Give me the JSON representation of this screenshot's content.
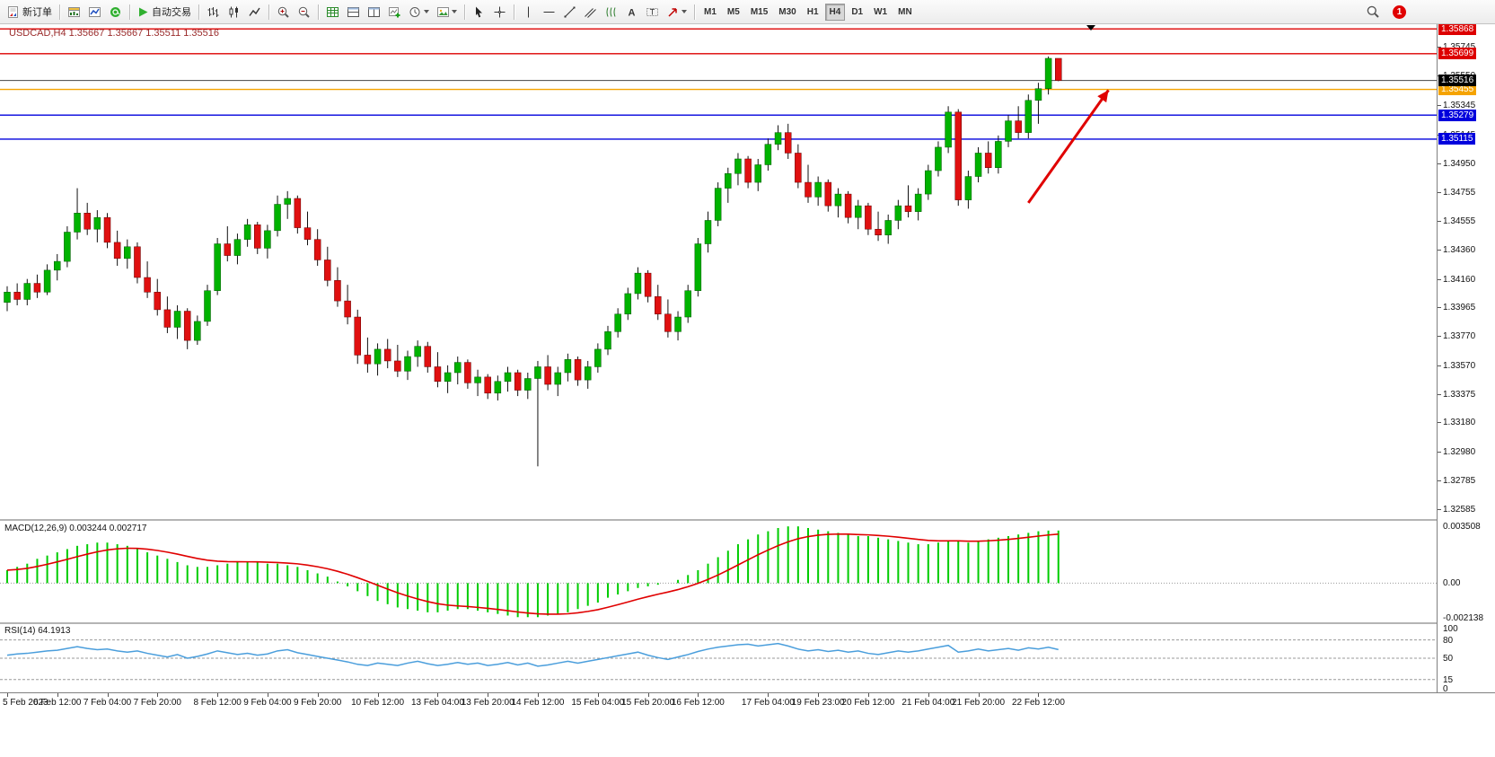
{
  "toolbar": {
    "new_order_label": "新订单",
    "autotrade_label": "自动交易",
    "timeframes": [
      {
        "label": "M1",
        "active": false
      },
      {
        "label": "M5",
        "active": false
      },
      {
        "label": "M15",
        "active": false
      },
      {
        "label": "M30",
        "active": false
      },
      {
        "label": "H1",
        "active": false
      },
      {
        "label": "H4",
        "active": true
      },
      {
        "label": "D1",
        "active": false
      },
      {
        "label": "W1",
        "active": false
      },
      {
        "label": "MN",
        "active": false
      }
    ],
    "notification_count": "1"
  },
  "chart": {
    "symbol": "USDCAD",
    "period": "H4",
    "title": "USDCAD,H4 1.35667 1.35667 1.35511 1.35516"
  },
  "chart_data": {
    "type": "candlestick",
    "symbol": "USDCAD",
    "timeframe": "H4",
    "price_range": [
      1.3252,
      1.359
    ],
    "current_price": "1.35516",
    "colors": {
      "up": "#00b300",
      "down": "#e01010",
      "wick": "#111111",
      "background": "#ffffff"
    },
    "price_axis_ticks": [
      "1.35745",
      "1.35550",
      "1.35345",
      "1.35145",
      "1.34950",
      "1.34755",
      "1.34555",
      "1.34360",
      "1.34160",
      "1.33965",
      "1.33770",
      "1.33570",
      "1.33375",
      "1.33180",
      "1.32980",
      "1.32785",
      "1.32585"
    ],
    "levels": [
      {
        "price": 1.35868,
        "label": "1.35868",
        "color": "#dd0000"
      },
      {
        "price": 1.35699,
        "label": "1.35699",
        "color": "#dd0000"
      },
      {
        "price": 1.35455,
        "label": "1.35455",
        "color": "#f5a300"
      },
      {
        "price": 1.35279,
        "label": "1.35279",
        "color": "#0000dd"
      },
      {
        "price": 1.35115,
        "label": "1.35115",
        "color": "#0000dd"
      }
    ],
    "arrow": {
      "from_bar": 102,
      "from_price": 1.3468,
      "to_bar": 110,
      "to_price": 1.3545,
      "color": "#e00000"
    },
    "time_labels": [
      {
        "index": 0,
        "label": "5 Feb 2023"
      },
      {
        "index": 5,
        "label": "6 Feb 12:00"
      },
      {
        "index": 10,
        "label": "7 Feb 04:00"
      },
      {
        "index": 15,
        "label": "7 Feb 20:00"
      },
      {
        "index": 21,
        "label": "8 Feb 12:00"
      },
      {
        "index": 26,
        "label": "9 Feb 04:00"
      },
      {
        "index": 31,
        "label": "9 Feb 20:00"
      },
      {
        "index": 37,
        "label": "10 Feb 12:00"
      },
      {
        "index": 43,
        "label": "13 Feb 04:00"
      },
      {
        "index": 48,
        "label": "13 Feb 20:00"
      },
      {
        "index": 53,
        "label": "14 Feb 12:00"
      },
      {
        "index": 59,
        "label": "15 Feb 04:00"
      },
      {
        "index": 64,
        "label": "15 Feb 20:00"
      },
      {
        "index": 69,
        "label": "16 Feb 12:00"
      },
      {
        "index": 76,
        "label": "17 Feb 04:00"
      },
      {
        "index": 81,
        "label": "19 Feb 23:00"
      },
      {
        "index": 86,
        "label": "20 Feb 12:00"
      },
      {
        "index": 92,
        "label": "21 Feb 04:00"
      },
      {
        "index": 97,
        "label": "21 Feb 20:00"
      },
      {
        "index": 103,
        "label": "22 Feb 12:00"
      }
    ],
    "ohlc": [
      [
        1.34,
        1.3411,
        1.3394,
        1.3407
      ],
      [
        1.3407,
        1.3413,
        1.3398,
        1.3402
      ],
      [
        1.3402,
        1.3416,
        1.3398,
        1.3413
      ],
      [
        1.3413,
        1.3419,
        1.3403,
        1.3407
      ],
      [
        1.3407,
        1.3426,
        1.3405,
        1.3422
      ],
      [
        1.3422,
        1.3433,
        1.3415,
        1.3428
      ],
      [
        1.3428,
        1.3452,
        1.3424,
        1.3448
      ],
      [
        1.3448,
        1.3478,
        1.3443,
        1.3461
      ],
      [
        1.3461,
        1.3468,
        1.3446,
        1.345
      ],
      [
        1.345,
        1.3463,
        1.3441,
        1.3458
      ],
      [
        1.3458,
        1.3461,
        1.3437,
        1.3441
      ],
      [
        1.3441,
        1.3449,
        1.3425,
        1.343
      ],
      [
        1.343,
        1.3443,
        1.3423,
        1.3438
      ],
      [
        1.3438,
        1.3441,
        1.3413,
        1.3417
      ],
      [
        1.3417,
        1.3428,
        1.3403,
        1.3407
      ],
      [
        1.3407,
        1.3416,
        1.3391,
        1.3395
      ],
      [
        1.3395,
        1.3404,
        1.3379,
        1.3383
      ],
      [
        1.3383,
        1.3398,
        1.3375,
        1.3394
      ],
      [
        1.3394,
        1.3396,
        1.3368,
        1.3374
      ],
      [
        1.3374,
        1.3391,
        1.3371,
        1.3387
      ],
      [
        1.3387,
        1.3412,
        1.3384,
        1.3408
      ],
      [
        1.3408,
        1.3444,
        1.3405,
        1.344
      ],
      [
        1.344,
        1.3452,
        1.3428,
        1.3432
      ],
      [
        1.3432,
        1.3447,
        1.3426,
        1.3443
      ],
      [
        1.3443,
        1.3457,
        1.3438,
        1.3453
      ],
      [
        1.3453,
        1.3455,
        1.3433,
        1.3437
      ],
      [
        1.3437,
        1.3453,
        1.343,
        1.3449
      ],
      [
        1.3449,
        1.3473,
        1.3445,
        1.3467
      ],
      [
        1.3467,
        1.3476,
        1.3457,
        1.3471
      ],
      [
        1.3471,
        1.3473,
        1.3447,
        1.3451
      ],
      [
        1.3451,
        1.3462,
        1.3439,
        1.3443
      ],
      [
        1.3443,
        1.345,
        1.3425,
        1.3429
      ],
      [
        1.3429,
        1.3438,
        1.3411,
        1.3415
      ],
      [
        1.3415,
        1.3424,
        1.3397,
        1.3401
      ],
      [
        1.3401,
        1.3412,
        1.3385,
        1.339
      ],
      [
        1.339,
        1.3395,
        1.3358,
        1.3364
      ],
      [
        1.3364,
        1.3376,
        1.3352,
        1.3358
      ],
      [
        1.3358,
        1.3372,
        1.335,
        1.3368
      ],
      [
        1.3368,
        1.3375,
        1.3355,
        1.336
      ],
      [
        1.336,
        1.3371,
        1.3349,
        1.3353
      ],
      [
        1.3353,
        1.3367,
        1.3347,
        1.3363
      ],
      [
        1.3363,
        1.3374,
        1.3356,
        1.337
      ],
      [
        1.337,
        1.3373,
        1.3352,
        1.3356
      ],
      [
        1.3356,
        1.3366,
        1.3342,
        1.3346
      ],
      [
        1.3346,
        1.3357,
        1.3338,
        1.3352
      ],
      [
        1.3352,
        1.3363,
        1.3344,
        1.3359
      ],
      [
        1.3359,
        1.3361,
        1.3341,
        1.3345
      ],
      [
        1.3345,
        1.3354,
        1.3336,
        1.3349
      ],
      [
        1.3349,
        1.3351,
        1.3334,
        1.3338
      ],
      [
        1.3338,
        1.335,
        1.3333,
        1.3346
      ],
      [
        1.3346,
        1.3356,
        1.3339,
        1.3352
      ],
      [
        1.3352,
        1.3354,
        1.3336,
        1.334
      ],
      [
        1.334,
        1.3352,
        1.3334,
        1.3348
      ],
      [
        1.3348,
        1.336,
        1.3288,
        1.3356
      ],
      [
        1.3356,
        1.3364,
        1.334,
        1.3344
      ],
      [
        1.3344,
        1.3356,
        1.3336,
        1.3352
      ],
      [
        1.3352,
        1.3365,
        1.3346,
        1.3361
      ],
      [
        1.3361,
        1.3363,
        1.3343,
        1.3347
      ],
      [
        1.3347,
        1.336,
        1.3341,
        1.3356
      ],
      [
        1.3356,
        1.3372,
        1.3352,
        1.3368
      ],
      [
        1.3368,
        1.3384,
        1.3364,
        1.338
      ],
      [
        1.338,
        1.3396,
        1.3376,
        1.3392
      ],
      [
        1.3392,
        1.341,
        1.3388,
        1.3406
      ],
      [
        1.3406,
        1.3424,
        1.3402,
        1.342
      ],
      [
        1.342,
        1.3422,
        1.34,
        1.3404
      ],
      [
        1.3404,
        1.3412,
        1.3388,
        1.3392
      ],
      [
        1.3392,
        1.3402,
        1.3376,
        1.338
      ],
      [
        1.338,
        1.3394,
        1.3374,
        1.339
      ],
      [
        1.339,
        1.3412,
        1.3386,
        1.3408
      ],
      [
        1.3408,
        1.3444,
        1.3404,
        1.344
      ],
      [
        1.344,
        1.3462,
        1.3434,
        1.3456
      ],
      [
        1.3456,
        1.3482,
        1.3452,
        1.3478
      ],
      [
        1.3478,
        1.3492,
        1.3468,
        1.3488
      ],
      [
        1.3488,
        1.3502,
        1.348,
        1.3498
      ],
      [
        1.3498,
        1.35,
        1.3478,
        1.3482
      ],
      [
        1.3482,
        1.3498,
        1.3476,
        1.3494
      ],
      [
        1.3494,
        1.3512,
        1.349,
        1.3508
      ],
      [
        1.3508,
        1.3521,
        1.3504,
        1.3516
      ],
      [
        1.3516,
        1.3522,
        1.3498,
        1.3502
      ],
      [
        1.3502,
        1.3508,
        1.3478,
        1.3482
      ],
      [
        1.3482,
        1.3494,
        1.3468,
        1.3472
      ],
      [
        1.3472,
        1.3486,
        1.3466,
        1.3482
      ],
      [
        1.3482,
        1.3484,
        1.3462,
        1.3466
      ],
      [
        1.3466,
        1.3478,
        1.3458,
        1.3474
      ],
      [
        1.3474,
        1.3476,
        1.3454,
        1.3458
      ],
      [
        1.3458,
        1.347,
        1.345,
        1.3466
      ],
      [
        1.3466,
        1.3468,
        1.3446,
        1.345
      ],
      [
        1.345,
        1.3462,
        1.3442,
        1.3446
      ],
      [
        1.3446,
        1.346,
        1.344,
        1.3456
      ],
      [
        1.3456,
        1.347,
        1.345,
        1.3466
      ],
      [
        1.3466,
        1.348,
        1.3458,
        1.3462
      ],
      [
        1.3462,
        1.3478,
        1.3456,
        1.3474
      ],
      [
        1.3474,
        1.3494,
        1.347,
        1.349
      ],
      [
        1.349,
        1.351,
        1.3486,
        1.3506
      ],
      [
        1.3506,
        1.3534,
        1.3502,
        1.353
      ],
      [
        1.353,
        1.3532,
        1.3466,
        1.347
      ],
      [
        1.347,
        1.349,
        1.3464,
        1.3486
      ],
      [
        1.3486,
        1.3506,
        1.3482,
        1.3502
      ],
      [
        1.3502,
        1.351,
        1.3488,
        1.3492
      ],
      [
        1.3492,
        1.3514,
        1.3488,
        1.351
      ],
      [
        1.351,
        1.3528,
        1.3506,
        1.3524
      ],
      [
        1.3524,
        1.3534,
        1.3512,
        1.3516
      ],
      [
        1.3516,
        1.3542,
        1.3512,
        1.3538
      ],
      [
        1.3538,
        1.355,
        1.3522,
        1.3546
      ],
      [
        1.3546,
        1.3568,
        1.3542,
        1.35667
      ],
      [
        1.35667,
        1.35667,
        1.35511,
        1.35516
      ]
    ],
    "macd": {
      "label": "MACD(12,26,9) 0.003244 0.002717",
      "main_value": 0.003244,
      "signal_value": 0.002717,
      "axis": [
        "0.003508",
        "0.00",
        "-0.002138"
      ],
      "range": [
        -0.00214,
        0.00351
      ],
      "histogram_color": "#00cc00",
      "signal_color": "#e00000",
      "values": [
        0.0008,
        0.001,
        0.0012,
        0.0015,
        0.0017,
        0.0019,
        0.0021,
        0.0023,
        0.0024,
        0.0025,
        0.0025,
        0.0024,
        0.0023,
        0.0021,
        0.0019,
        0.0017,
        0.0015,
        0.0013,
        0.0011,
        0.001,
        0.001,
        0.0011,
        0.0012,
        0.0013,
        0.0013,
        0.0013,
        0.0012,
        0.0012,
        0.0011,
        0.001,
        0.0008,
        0.0006,
        0.0004,
        0.0001,
        -0.0002,
        -0.0005,
        -0.0008,
        -0.0011,
        -0.0013,
        -0.0015,
        -0.0016,
        -0.0017,
        -0.0018,
        -0.0018,
        -0.0017,
        -0.0016,
        -0.0016,
        -0.0017,
        -0.0018,
        -0.0019,
        -0.002,
        -0.0021,
        -0.0021,
        -0.0021,
        -0.002,
        -0.0019,
        -0.0018,
        -0.0016,
        -0.0014,
        -0.0012,
        -0.0009,
        -0.0007,
        -0.0005,
        -0.0003,
        -0.0002,
        -0.0001,
        0.0,
        0.0002,
        0.0005,
        0.0008,
        0.0012,
        0.0016,
        0.002,
        0.0024,
        0.0027,
        0.003,
        0.0032,
        0.0034,
        0.0035,
        0.0035,
        0.0034,
        0.0033,
        0.0032,
        0.0031,
        0.003,
        0.0029,
        0.0029,
        0.0028,
        0.0027,
        0.0026,
        0.0025,
        0.0024,
        0.0024,
        0.0025,
        0.0026,
        0.0026,
        0.0025,
        0.0026,
        0.0027,
        0.0028,
        0.0029,
        0.003,
        0.0031,
        0.0032,
        0.00324,
        0.003244
      ]
    },
    "rsi": {
      "label": "RSI(14) 64.1913",
      "value": 64.1913,
      "axis": [
        "100",
        "80",
        "50",
        "15",
        "0"
      ],
      "levels": [
        80,
        50,
        15
      ],
      "line_color": "#4a9edc",
      "values": [
        55,
        57,
        58,
        60,
        62,
        63,
        66,
        69,
        66,
        64,
        65,
        62,
        60,
        62,
        58,
        55,
        52,
        56,
        50,
        53,
        57,
        62,
        59,
        56,
        58,
        55,
        57,
        62,
        64,
        59,
        56,
        53,
        50,
        47,
        44,
        40,
        38,
        42,
        40,
        38,
        42,
        45,
        41,
        38,
        40,
        43,
        40,
        42,
        38,
        40,
        43,
        39,
        42,
        37,
        39,
        42,
        45,
        42,
        45,
        48,
        51,
        54,
        57,
        60,
        55,
        51,
        48,
        52,
        56,
        61,
        65,
        68,
        70,
        72,
        73,
        70,
        72,
        74,
        70,
        65,
        62,
        64,
        61,
        63,
        60,
        62,
        58,
        56,
        59,
        62,
        60,
        62,
        65,
        68,
        71,
        60,
        62,
        65,
        62,
        64,
        66,
        63,
        67,
        65,
        68,
        64.19
      ]
    }
  }
}
